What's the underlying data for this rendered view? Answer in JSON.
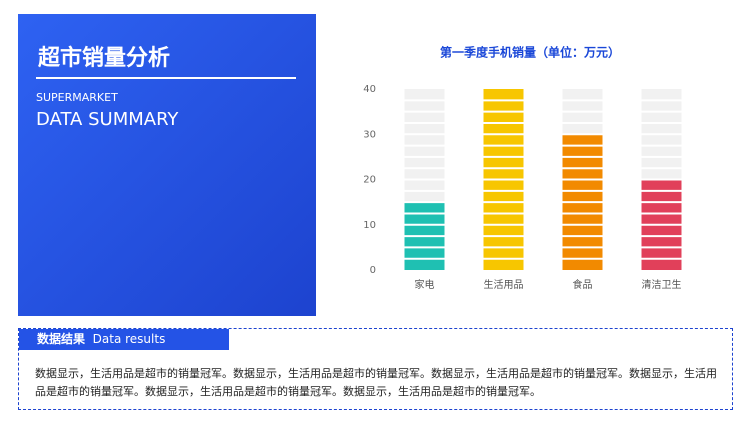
{
  "panel": {
    "title": "超市销量分析",
    "subtitle": "SUPERMARKET",
    "heading": "DATA SUMMARY"
  },
  "chart_data": {
    "type": "bar",
    "title": "第一季度手机销量（单位：万元）",
    "categories": [
      "家电",
      "生活用品",
      "食品",
      "清洁卫生"
    ],
    "values": [
      15,
      40,
      30,
      20
    ],
    "colors": [
      "#1fc0b2",
      "#f7c600",
      "#f28a00",
      "#e1405a"
    ],
    "ylim": [
      0,
      40
    ],
    "yticks": [
      0,
      10,
      20,
      30,
      40
    ],
    "grid": false
  },
  "results": {
    "label": "数据结果",
    "label_en": "Data results",
    "text": "数据显示，生活用品是超市的销量冠军。数据显示，生活用品是超市的销量冠军。数据显示，生活用品是超市的销量冠军。数据显示，生活用品是超市的销量冠军。数据显示，生活用品是超市的销量冠军。数据显示，生活用品是超市的销量冠军。"
  }
}
